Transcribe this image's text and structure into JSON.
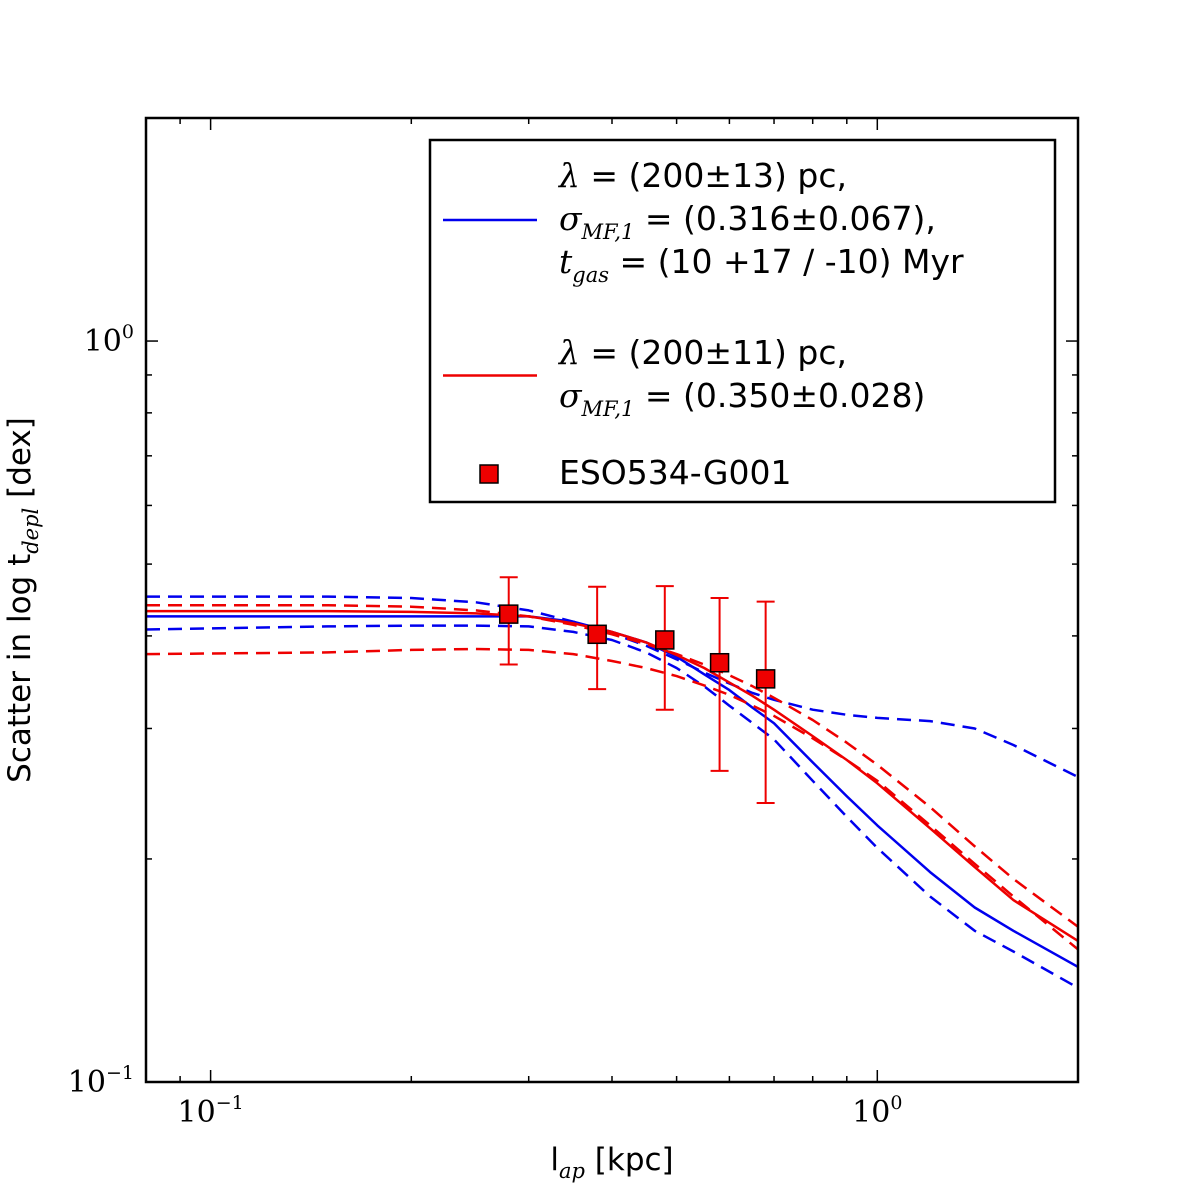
{
  "chart_data": {
    "type": "line",
    "xscale": "log",
    "yscale": "log",
    "xlim": [
      0.08,
      2.0
    ],
    "ylim": [
      0.1,
      2.0
    ],
    "xlabel": {
      "main": "l",
      "sub": "ap",
      "unit": " [kpc]"
    },
    "ylabel": {
      "main": "Scatter in log t",
      "sub": "depl",
      "unit": " [dex]"
    },
    "xticks": [
      {
        "value": 0.1,
        "base": "10",
        "exp": "−1"
      },
      {
        "value": 1.0,
        "base": "10",
        "exp": "0"
      }
    ],
    "yticks": [
      {
        "value": 0.1,
        "base": "10",
        "exp": "−1"
      },
      {
        "value": 1.0,
        "base": "10",
        "exp": "0"
      }
    ],
    "series": [
      {
        "name": "blue model",
        "color": "#0000ee",
        "style": "solid",
        "x": [
          0.08,
          0.15,
          0.2,
          0.25,
          0.3,
          0.35,
          0.4,
          0.45,
          0.5,
          0.55,
          0.6,
          0.65,
          0.7,
          0.8,
          0.9,
          1.0,
          1.2,
          1.4,
          1.6,
          2.0
        ],
        "y": [
          0.425,
          0.425,
          0.425,
          0.425,
          0.425,
          0.418,
          0.405,
          0.392,
          0.375,
          0.355,
          0.338,
          0.32,
          0.305,
          0.27,
          0.243,
          0.222,
          0.192,
          0.172,
          0.16,
          0.143
        ]
      },
      {
        "name": "blue upper",
        "color": "#0000ee",
        "style": "dashed",
        "x": [
          0.08,
          0.15,
          0.2,
          0.25,
          0.3,
          0.35,
          0.4,
          0.45,
          0.5,
          0.55,
          0.6,
          0.65,
          0.7,
          0.8,
          0.9,
          1.0,
          1.2,
          1.4,
          1.6,
          2.0
        ],
        "y": [
          0.452,
          0.452,
          0.45,
          0.444,
          0.433,
          0.418,
          0.403,
          0.388,
          0.372,
          0.357,
          0.345,
          0.335,
          0.328,
          0.318,
          0.313,
          0.31,
          0.307,
          0.3,
          0.285,
          0.258
        ]
      },
      {
        "name": "blue lower",
        "color": "#0000ee",
        "style": "dashed",
        "x": [
          0.08,
          0.15,
          0.2,
          0.25,
          0.3,
          0.35,
          0.4,
          0.45,
          0.5,
          0.55,
          0.6,
          0.65,
          0.7,
          0.8,
          0.9,
          1.0,
          1.2,
          1.4,
          1.6,
          2.0
        ],
        "y": [
          0.408,
          0.412,
          0.413,
          0.413,
          0.412,
          0.405,
          0.395,
          0.38,
          0.362,
          0.342,
          0.322,
          0.305,
          0.29,
          0.255,
          0.228,
          0.207,
          0.178,
          0.16,
          0.15,
          0.134
        ]
      },
      {
        "name": "red model",
        "color": "#ee0000",
        "style": "solid",
        "x": [
          0.08,
          0.15,
          0.2,
          0.25,
          0.3,
          0.35,
          0.4,
          0.45,
          0.5,
          0.55,
          0.6,
          0.65,
          0.7,
          0.8,
          0.9,
          1.0,
          1.2,
          1.4,
          1.6,
          2.0
        ],
        "y": [
          0.432,
          0.432,
          0.431,
          0.429,
          0.425,
          0.416,
          0.405,
          0.392,
          0.377,
          0.362,
          0.346,
          0.332,
          0.318,
          0.293,
          0.272,
          0.253,
          0.22,
          0.195,
          0.176,
          0.155
        ]
      },
      {
        "name": "red upper",
        "color": "#ee0000",
        "style": "dashed",
        "x": [
          0.08,
          0.15,
          0.2,
          0.25,
          0.3,
          0.35,
          0.4,
          0.45,
          0.5,
          0.55,
          0.6,
          0.65,
          0.7,
          0.8,
          0.9,
          1.0,
          1.2,
          1.4,
          1.6,
          2.0
        ],
        "y": [
          0.44,
          0.44,
          0.438,
          0.433,
          0.425,
          0.414,
          0.402,
          0.39,
          0.378,
          0.366,
          0.354,
          0.342,
          0.33,
          0.308,
          0.287,
          0.268,
          0.235,
          0.208,
          0.188,
          0.162
        ]
      },
      {
        "name": "red lower",
        "color": "#ee0000",
        "style": "dashed",
        "x": [
          0.08,
          0.15,
          0.2,
          0.25,
          0.3,
          0.35,
          0.4,
          0.45,
          0.5,
          0.55,
          0.6,
          0.65,
          0.7,
          0.8,
          0.9,
          1.0,
          1.2,
          1.4,
          1.6,
          2.0
        ],
        "y": [
          0.378,
          0.38,
          0.383,
          0.384,
          0.383,
          0.378,
          0.37,
          0.362,
          0.353,
          0.343,
          0.333,
          0.322,
          0.312,
          0.291,
          0.272,
          0.255,
          0.222,
          0.197,
          0.178,
          0.151
        ]
      }
    ],
    "points": {
      "name": "ESO534-G001",
      "color": "#ee0000",
      "x": [
        0.28,
        0.38,
        0.48,
        0.58,
        0.68
      ],
      "y": [
        0.428,
        0.402,
        0.395,
        0.368,
        0.35
      ],
      "err_low": [
        0.366,
        0.339,
        0.318,
        0.263,
        0.238
      ],
      "err_high": [
        0.48,
        0.466,
        0.467,
        0.45,
        0.445
      ]
    },
    "legend": {
      "position": "upper right",
      "entries": [
        {
          "kind": "line",
          "color": "#0000ee",
          "lines": [
            [
              {
                "t": "λ",
                "i": true
              },
              {
                "t": " = (200±13) pc,"
              }
            ],
            [
              {
                "t": "σ",
                "i": true
              },
              {
                "t": "MF,1",
                "sub": true
              },
              {
                "t": " = (0.316±0.067),"
              }
            ],
            [
              {
                "t": "t",
                "i": true
              },
              {
                "t": "gas",
                "sub": true
              },
              {
                "t": " = (10 +17 / -10) Myr"
              }
            ]
          ]
        },
        {
          "kind": "line",
          "color": "#ee0000",
          "lines": [
            [
              {
                "t": "λ",
                "i": true
              },
              {
                "t": " = (200±11) pc,"
              }
            ],
            [
              {
                "t": "σ",
                "i": true
              },
              {
                "t": "MF,1",
                "sub": true
              },
              {
                "t": " = (0.350±0.028)"
              }
            ]
          ]
        },
        {
          "kind": "marker",
          "color": "#ee0000",
          "lines": [
            [
              {
                "t": "ESO534-G001"
              }
            ]
          ]
        }
      ]
    }
  }
}
